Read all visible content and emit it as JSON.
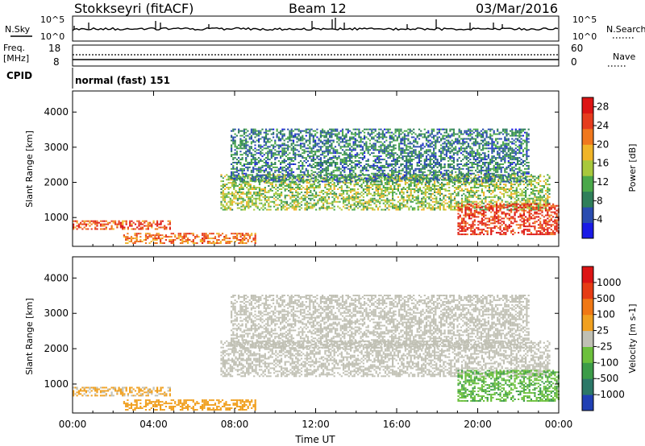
{
  "header": {
    "station": "Stokkseyri (fitACF)",
    "beam": "Beam 12",
    "date": "03/Mar/2016"
  },
  "strip_panels": {
    "nsky": {
      "left_label": "N.Sky",
      "left_ticks": [
        "10^5",
        "10^0"
      ],
      "right_ticks": [
        "10^5",
        "10^0"
      ],
      "right_label": "N.Search"
    },
    "freq": {
      "left_label": "Freq.",
      "left_unit": "[MHz]",
      "left_ticks": [
        "18",
        "8"
      ],
      "right_ticks": [
        "60",
        "0"
      ],
      "right_label": "Nave"
    },
    "cpid": {
      "left_label": "CPID",
      "mode_text": "normal (fast) 151"
    }
  },
  "chart_data": [
    {
      "type": "heatmap",
      "panel": "power",
      "xlabel": "",
      "ylabel": "Slant Range [km]",
      "x_ticks": [
        "00:00",
        "04:00",
        "08:00",
        "12:00",
        "16:00",
        "20:00",
        "00:00"
      ],
      "x_range_hours": [
        0,
        24
      ],
      "y_ticks": [
        1000,
        2000,
        3000,
        4000
      ],
      "ylim": [
        180,
        4600
      ],
      "colorbar": {
        "label": "Power [dB]",
        "ticks": [
          4,
          8,
          12,
          16,
          20,
          24,
          28
        ],
        "range": [
          0,
          30
        ],
        "colors": [
          "#1a1ae6",
          "#2a4cb0",
          "#2f7f5a",
          "#4aa84a",
          "#a8c83c",
          "#f0b428",
          "#f0781e",
          "#e63c1e",
          "#dc1414"
        ]
      },
      "features": [
        {
          "name": "near-range echo",
          "start_hour": 0.0,
          "end_hour": 4.8,
          "range_km": [
            650,
            900
          ],
          "power_db": 24
        },
        {
          "name": "near-range echo",
          "start_hour": 2.5,
          "end_hour": 9.0,
          "range_km": [
            250,
            550
          ],
          "power_db": 22
        },
        {
          "name": "main arc",
          "start_hour": 7.3,
          "end_hour": 23.5,
          "range_km": [
            1200,
            2200
          ],
          "power_db": 14
        },
        {
          "name": "upper arc",
          "start_hour": 7.8,
          "end_hour": 22.5,
          "range_km": [
            2000,
            3500
          ],
          "power_db": 8
        },
        {
          "name": "evening echo",
          "start_hour": 19.0,
          "end_hour": 24.0,
          "range_km": [
            500,
            1400
          ],
          "power_db": 26
        }
      ]
    },
    {
      "type": "heatmap",
      "panel": "velocity",
      "xlabel": "Time UT",
      "ylabel": "Slant Range [km]",
      "x_ticks": [
        "00:00",
        "04:00",
        "08:00",
        "12:00",
        "16:00",
        "20:00",
        "00:00"
      ],
      "x_range_hours": [
        0,
        24
      ],
      "y_ticks": [
        1000,
        2000,
        3000,
        4000
      ],
      "ylim": [
        180,
        4600
      ],
      "colorbar": {
        "label": "Velocity [m s-1]",
        "ticks": [
          "1000",
          "500",
          "100",
          "25",
          "-25",
          "-100",
          "-500",
          "-1000"
        ],
        "range": [
          -1000,
          1000
        ],
        "colors": [
          "#2040b4",
          "#2c7868",
          "#3c9c48",
          "#6cc03c",
          "#c0c0b4",
          "#f0a020",
          "#f07814",
          "#e63c14",
          "#dc1414"
        ]
      },
      "features": [
        {
          "name": "near-range echo",
          "start_hour": 0.0,
          "end_hour": 4.8,
          "range_km": [
            650,
            900
          ],
          "velocity": 150
        },
        {
          "name": "near-range echo",
          "start_hour": 2.5,
          "end_hour": 9.0,
          "range_km": [
            250,
            550
          ],
          "velocity": 200
        },
        {
          "name": "main arc",
          "start_hour": 7.3,
          "end_hour": 23.5,
          "range_km": [
            1200,
            2200
          ],
          "velocity": 0
        },
        {
          "name": "upper arc",
          "start_hour": 7.8,
          "end_hour": 22.5,
          "range_km": [
            2000,
            3500
          ],
          "velocity": 0
        },
        {
          "name": "evening echo",
          "start_hour": 19.0,
          "end_hour": 24.0,
          "range_km": [
            500,
            1400
          ],
          "velocity": -300
        }
      ]
    }
  ]
}
